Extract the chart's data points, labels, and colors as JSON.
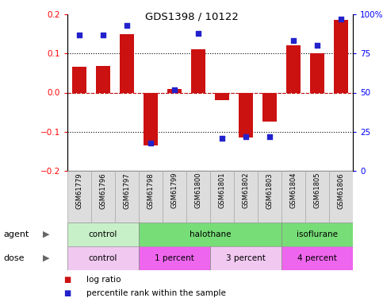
{
  "title": "GDS1398 / 10122",
  "samples": [
    "GSM61779",
    "GSM61796",
    "GSM61797",
    "GSM61798",
    "GSM61799",
    "GSM61800",
    "GSM61801",
    "GSM61802",
    "GSM61803",
    "GSM61804",
    "GSM61805",
    "GSM61806"
  ],
  "log_ratio": [
    0.065,
    0.068,
    0.15,
    -0.135,
    0.01,
    0.11,
    -0.02,
    -0.115,
    -0.075,
    0.12,
    0.1,
    0.185
  ],
  "percentile": [
    87,
    87,
    93,
    18,
    52,
    88,
    21,
    22,
    22,
    83,
    80,
    97
  ],
  "agent_groups": [
    {
      "label": "control",
      "start": 0,
      "end": 3,
      "color": "#c8f0c8"
    },
    {
      "label": "halothane",
      "start": 3,
      "end": 9,
      "color": "#77dd77"
    },
    {
      "label": "isoflurane",
      "start": 9,
      "end": 12,
      "color": "#77dd77"
    }
  ],
  "dose_groups": [
    {
      "label": "control",
      "start": 0,
      "end": 3,
      "color": "#f0c8f0"
    },
    {
      "label": "1 percent",
      "start": 3,
      "end": 6,
      "color": "#ee66ee"
    },
    {
      "label": "3 percent",
      "start": 6,
      "end": 9,
      "color": "#f0c8f0"
    },
    {
      "label": "4 percent",
      "start": 9,
      "end": 12,
      "color": "#ee66ee"
    }
  ],
  "ylim": [
    -0.2,
    0.2
  ],
  "yticks_left": [
    -0.2,
    -0.1,
    0.0,
    0.1,
    0.2
  ],
  "yticks_right": [
    0,
    25,
    50,
    75,
    100
  ],
  "bar_color": "#cc1111",
  "dot_color": "#2222cc",
  "legend_log_ratio": "log ratio",
  "legend_percentile": "percentile rank within the sample",
  "sample_bg_color": "#dddddd",
  "grid_color": "#888888"
}
